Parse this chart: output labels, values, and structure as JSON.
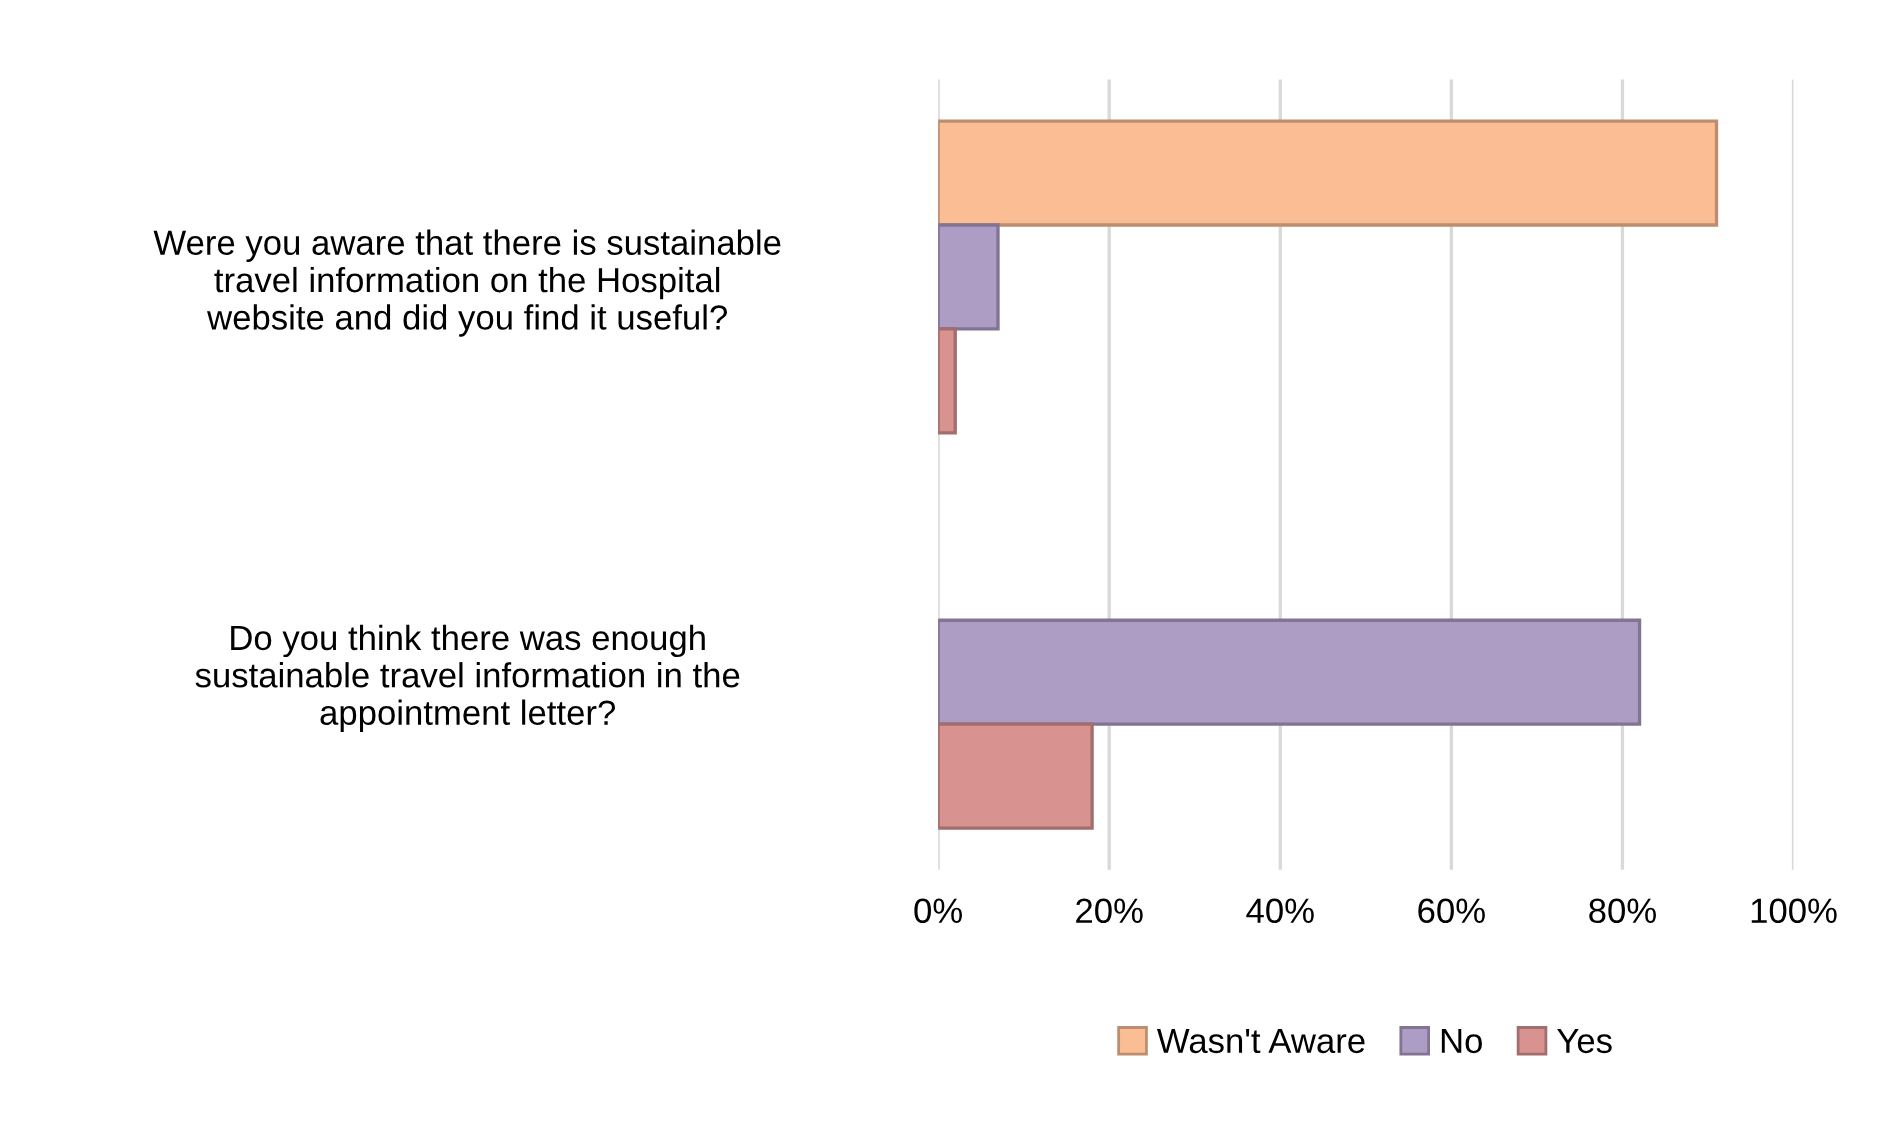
{
  "chart_data": {
    "type": "bar",
    "orientation": "horizontal",
    "categories": [
      "Were you aware that there is sustainable travel information on the Hospital website and did you find it useful?",
      "Do you think there was enough sustainable travel information in the appointment letter?"
    ],
    "series": [
      {
        "name": "Wasn't Aware",
        "color": "#fbbd94",
        "values": [
          91,
          null
        ]
      },
      {
        "name": "No",
        "color": "#ad9cc4",
        "values": [
          7,
          82
        ]
      },
      {
        "name": "Yes",
        "color": "#d89391",
        "values": [
          2,
          18
        ]
      }
    ],
    "xlim": [
      0,
      100
    ],
    "xticks": [
      {
        "value": 0,
        "label": "0%"
      },
      {
        "value": 20,
        "label": "20%"
      },
      {
        "value": 40,
        "label": "40%"
      },
      {
        "value": 60,
        "label": "60%"
      },
      {
        "value": 80,
        "label": "80%"
      },
      {
        "value": 100,
        "label": "100%"
      }
    ],
    "grid": "x",
    "legend": "bottom"
  }
}
